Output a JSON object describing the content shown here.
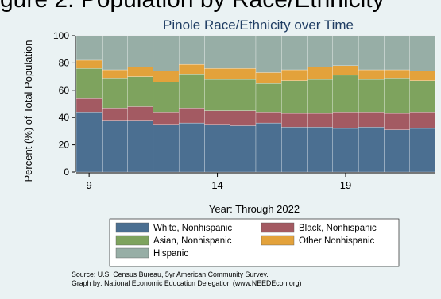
{
  "page_caption": "gure 2. Population by Race/Ethnicity",
  "chart_data": {
    "type": "stacked_bar",
    "title": "Pinole Race/Ethnicity over Time",
    "xlabel": "Year: Through 2022",
    "ylabel": "Percent (%) of Total Population",
    "ylim": [
      0,
      100
    ],
    "yticks": [
      0,
      20,
      40,
      60,
      80,
      100
    ],
    "x": [
      9,
      10,
      11,
      12,
      13,
      14,
      15,
      16,
      17,
      18,
      19,
      20,
      21,
      22
    ],
    "xticks": [
      9,
      14,
      19
    ],
    "grid": true,
    "legend_position": "bottom",
    "series": [
      {
        "name": "White, Nonhispanic",
        "color": "#4b6f91",
        "values": [
          44,
          38,
          38,
          35,
          36,
          35,
          34,
          36,
          33,
          33,
          32,
          33,
          31,
          32
        ]
      },
      {
        "name": "Black, Nonhispanic",
        "color": "#a35a62",
        "values": [
          10,
          9,
          10,
          9,
          11,
          10,
          11,
          8,
          10,
          10,
          12,
          11,
          12,
          12
        ]
      },
      {
        "name": "Asian, Nonhispanic",
        "color": "#7ea35e",
        "values": [
          22,
          22,
          22,
          22,
          25,
          23,
          23,
          21,
          24,
          25,
          27,
          24,
          26,
          23
        ]
      },
      {
        "name": "Other Nonhispanic",
        "color": "#e3a23b",
        "values": [
          6,
          6,
          7,
          8,
          7,
          8,
          8,
          8,
          8,
          9,
          7,
          7,
          6,
          7
        ]
      },
      {
        "name": "Hispanic",
        "color": "#97aea6",
        "values": [
          18,
          25,
          23,
          26,
          21,
          24,
          24,
          27,
          25,
          23,
          22,
          25,
          25,
          26
        ]
      }
    ]
  },
  "source_lines": [
    "Source:  U.S. Census Bureau, 5yr American Community Survey.",
    "Graph by: National Economic Education Delegation (www.NEEDEcon.org)"
  ]
}
